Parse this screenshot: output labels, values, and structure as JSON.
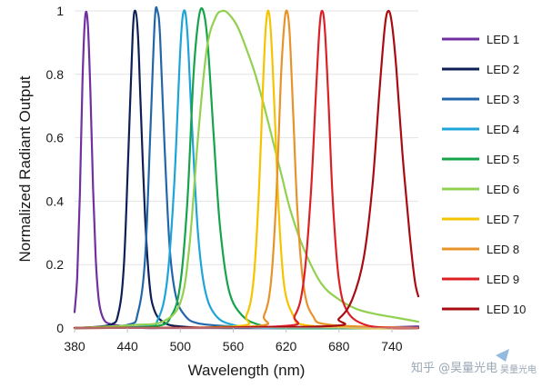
{
  "chart_data": {
    "type": "line",
    "title": "",
    "xlabel": "Wavelength (nm)",
    "ylabel": "Normalized Radiant Output",
    "xlim": [
      380,
      770
    ],
    "ylim": [
      0,
      1
    ],
    "xticks": [
      380,
      440,
      500,
      560,
      620,
      680,
      740
    ],
    "yticks": [
      0,
      0.2,
      0.4,
      0.6,
      0.8,
      1
    ],
    "ytick_labels": [
      "0",
      "0.2",
      "0.4",
      "0.6",
      "0.8",
      "1"
    ],
    "grid": "horizontal",
    "legend_position": "right",
    "series": [
      {
        "name": "LED 1",
        "color": "#7030a0",
        "x": [
          380,
          383,
          386,
          389,
          392,
          395,
          398,
          401,
          404,
          407,
          410,
          415,
          425,
          440,
          460,
          500,
          600,
          700,
          770
        ],
        "y": [
          0.05,
          0.16,
          0.42,
          0.78,
          0.98,
          0.96,
          0.74,
          0.44,
          0.22,
          0.1,
          0.05,
          0.02,
          0.01,
          0.005,
          0.0,
          0.0,
          0.0,
          0.0,
          0.005
        ]
      },
      {
        "name": "LED 2",
        "color": "#0d1f55",
        "x": [
          380,
          420,
          430,
          436,
          441,
          446,
          449,
          452,
          455,
          460,
          465,
          470,
          480,
          500,
          560,
          770
        ],
        "y": [
          0.0,
          0.01,
          0.05,
          0.2,
          0.55,
          0.93,
          1.0,
          0.92,
          0.7,
          0.35,
          0.14,
          0.06,
          0.02,
          0.005,
          0.0,
          0.0
        ]
      },
      {
        "name": "LED 3",
        "color": "#2266aa",
        "x": [
          380,
          440,
          452,
          460,
          466,
          471,
          474,
          477,
          482,
          488,
          495,
          505,
          520,
          560,
          620,
          700,
          770
        ],
        "y": [
          0.0,
          0.01,
          0.05,
          0.22,
          0.62,
          0.97,
          1.0,
          0.92,
          0.58,
          0.25,
          0.1,
          0.04,
          0.015,
          0.005,
          0.0,
          0.0,
          0.0
        ]
      },
      {
        "name": "LED 4",
        "color": "#1ea4d8",
        "x": [
          380,
          460,
          475,
          485,
          493,
          500,
          504,
          508,
          513,
          520,
          528,
          540,
          560,
          600,
          770
        ],
        "y": [
          0.0,
          0.005,
          0.03,
          0.15,
          0.45,
          0.88,
          1.0,
          0.93,
          0.65,
          0.3,
          0.12,
          0.04,
          0.01,
          0.0,
          0.0
        ]
      },
      {
        "name": "LED 5",
        "color": "#16a34a",
        "x": [
          380,
          470,
          490,
          500,
          508,
          515,
          521,
          526,
          531,
          538,
          545,
          555,
          570,
          590,
          620,
          770
        ],
        "y": [
          0.0,
          0.005,
          0.04,
          0.14,
          0.4,
          0.8,
          0.98,
          1.0,
          0.9,
          0.6,
          0.32,
          0.12,
          0.04,
          0.01,
          0.0,
          0.0
        ]
      },
      {
        "name": "LED 6",
        "color": "#92d050",
        "x": [
          380,
          420,
          450,
          480,
          500,
          510,
          520,
          530,
          540,
          548,
          555,
          565,
          575,
          585,
          595,
          605,
          615,
          625,
          640,
          660,
          680,
          700,
          720,
          740,
          760,
          770
        ],
        "y": [
          0.0,
          0.005,
          0.01,
          0.02,
          0.08,
          0.25,
          0.6,
          0.88,
          0.98,
          1.0,
          0.99,
          0.95,
          0.88,
          0.8,
          0.7,
          0.59,
          0.48,
          0.37,
          0.25,
          0.14,
          0.09,
          0.06,
          0.045,
          0.035,
          0.025,
          0.02
        ]
      },
      {
        "name": "LED 7",
        "color": "#f5c400",
        "x": [
          380,
          560,
          575,
          583,
          589,
          594,
          597,
          600,
          603,
          607,
          612,
          618,
          628,
          640,
          700,
          770
        ],
        "y": [
          0.0,
          0.005,
          0.04,
          0.15,
          0.42,
          0.78,
          0.95,
          1.0,
          0.92,
          0.68,
          0.35,
          0.13,
          0.04,
          0.01,
          0.0,
          0.0
        ]
      },
      {
        "name": "LED 8",
        "color": "#e8932a",
        "x": [
          380,
          580,
          595,
          603,
          609,
          614,
          618,
          621,
          624,
          628,
          633,
          640,
          650,
          670,
          770
        ],
        "y": [
          0.0,
          0.005,
          0.04,
          0.15,
          0.42,
          0.78,
          0.96,
          1.0,
          0.93,
          0.68,
          0.36,
          0.13,
          0.04,
          0.01,
          0.0
        ]
      },
      {
        "name": "LED 9",
        "color": "#dd1f26",
        "x": [
          380,
          610,
          630,
          640,
          648,
          654,
          658,
          661,
          664,
          668,
          673,
          680,
          690,
          710,
          740,
          770
        ],
        "y": [
          0.0,
          0.005,
          0.04,
          0.15,
          0.42,
          0.75,
          0.95,
          1.0,
          0.94,
          0.72,
          0.4,
          0.15,
          0.05,
          0.01,
          0.0,
          0.0
        ]
      },
      {
        "name": "LED 10",
        "color": "#a80c12",
        "x": [
          380,
          660,
          680,
          695,
          708,
          718,
          726,
          732,
          736,
          740,
          745,
          752,
          760,
          766,
          770
        ],
        "y": [
          0.0,
          0.005,
          0.03,
          0.09,
          0.22,
          0.45,
          0.75,
          0.95,
          1.0,
          0.96,
          0.82,
          0.55,
          0.3,
          0.15,
          0.1
        ]
      }
    ]
  },
  "watermark": {
    "text": "知乎 @昊量光电",
    "logo_text": "昊量光电"
  }
}
